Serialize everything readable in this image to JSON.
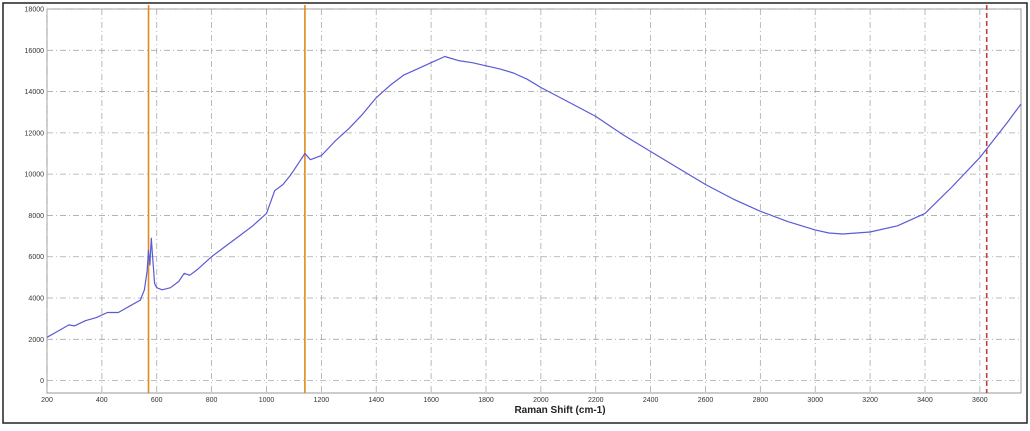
{
  "chart_data": {
    "type": "line",
    "title": "",
    "xlabel": "Raman Shift (cm-1)",
    "ylabel": "",
    "xlim": [
      200,
      3750
    ],
    "ylim": [
      -600,
      18000
    ],
    "grid": true,
    "x_ticks": [
      200,
      400,
      600,
      800,
      1000,
      1200,
      1400,
      1600,
      1800,
      2000,
      2200,
      2400,
      2600,
      2800,
      3000,
      3200,
      3400,
      3600
    ],
    "y_ticks": [
      0,
      2000,
      4000,
      6000,
      8000,
      10000,
      12000,
      14000,
      16000,
      18000
    ],
    "vertical_markers": [
      {
        "x": 570,
        "color": "#e08a1e",
        "style": "solid"
      },
      {
        "x": 1140,
        "color": "#e08a1e",
        "style": "solid"
      },
      {
        "x": 3625,
        "color": "#c04040",
        "style": "dashed"
      }
    ],
    "series": [
      {
        "color": "#5a5ad6",
        "points": [
          [
            200,
            2100
          ],
          [
            240,
            2400
          ],
          [
            280,
            2700
          ],
          [
            300,
            2650
          ],
          [
            340,
            2900
          ],
          [
            380,
            3050
          ],
          [
            420,
            3300
          ],
          [
            460,
            3300
          ],
          [
            500,
            3600
          ],
          [
            540,
            3900
          ],
          [
            555,
            4400
          ],
          [
            565,
            5300
          ],
          [
            570,
            6300
          ],
          [
            575,
            5600
          ],
          [
            580,
            6900
          ],
          [
            585,
            6000
          ],
          [
            592,
            4700
          ],
          [
            600,
            4500
          ],
          [
            620,
            4400
          ],
          [
            650,
            4500
          ],
          [
            680,
            4800
          ],
          [
            700,
            5200
          ],
          [
            720,
            5100
          ],
          [
            750,
            5400
          ],
          [
            800,
            6000
          ],
          [
            850,
            6500
          ],
          [
            900,
            7000
          ],
          [
            950,
            7500
          ],
          [
            1000,
            8100
          ],
          [
            1030,
            9200
          ],
          [
            1060,
            9500
          ],
          [
            1090,
            10000
          ],
          [
            1120,
            10600
          ],
          [
            1140,
            11000
          ],
          [
            1160,
            10700
          ],
          [
            1200,
            10900
          ],
          [
            1250,
            11600
          ],
          [
            1300,
            12200
          ],
          [
            1350,
            12900
          ],
          [
            1400,
            13700
          ],
          [
            1450,
            14300
          ],
          [
            1500,
            14800
          ],
          [
            1550,
            15100
          ],
          [
            1600,
            15400
          ],
          [
            1650,
            15700
          ],
          [
            1700,
            15500
          ],
          [
            1750,
            15400
          ],
          [
            1800,
            15250
          ],
          [
            1850,
            15100
          ],
          [
            1900,
            14900
          ],
          [
            1950,
            14600
          ],
          [
            2000,
            14200
          ],
          [
            2100,
            13500
          ],
          [
            2200,
            12800
          ],
          [
            2300,
            11900
          ],
          [
            2400,
            11100
          ],
          [
            2500,
            10300
          ],
          [
            2600,
            9500
          ],
          [
            2700,
            8800
          ],
          [
            2800,
            8200
          ],
          [
            2900,
            7700
          ],
          [
            3000,
            7300
          ],
          [
            3050,
            7150
          ],
          [
            3100,
            7100
          ],
          [
            3200,
            7200
          ],
          [
            3300,
            7500
          ],
          [
            3400,
            8100
          ],
          [
            3500,
            9400
          ],
          [
            3600,
            10800
          ],
          [
            3700,
            12500
          ],
          [
            3750,
            13400
          ]
        ]
      }
    ]
  }
}
